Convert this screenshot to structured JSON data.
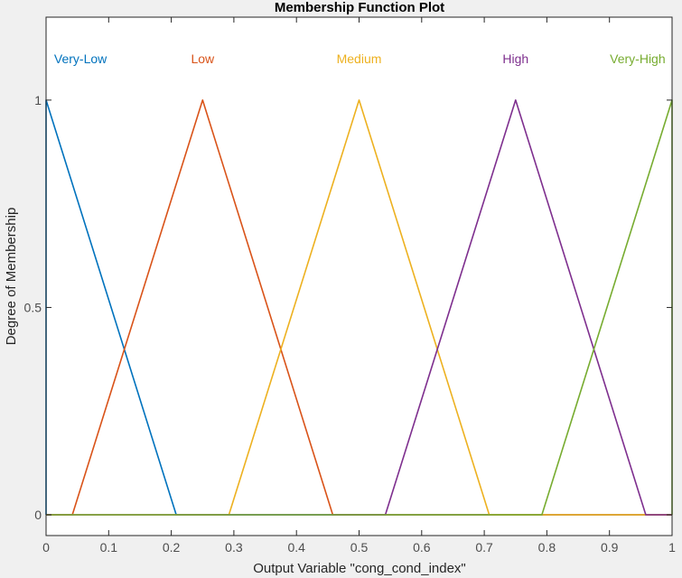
{
  "chart_data": {
    "type": "line",
    "title": "Membership Function Plot",
    "xlabel": "Output Variable \"cong_cond_index\"",
    "ylabel": "Degree of Membership",
    "xlim": [
      0,
      1
    ],
    "ylim": [
      -0.05,
      1.2
    ],
    "xticks": [
      0,
      0.1,
      0.2,
      0.3,
      0.4,
      0.5,
      0.6,
      0.7,
      0.8,
      0.9,
      1
    ],
    "xtick_labels": [
      "0",
      "0.1",
      "0.2",
      "0.3",
      "0.4",
      "0.5",
      "0.6",
      "0.7",
      "0.8",
      "0.9",
      "1"
    ],
    "yticks": [
      0,
      0.5,
      1
    ],
    "ytick_labels": [
      "0",
      "0.5",
      "1"
    ],
    "grid": false,
    "series": [
      {
        "name": "Very-Low",
        "color": "#0072bd",
        "x": [
          0,
          0,
          0.208,
          1
        ],
        "y": [
          0,
          1,
          0,
          0
        ]
      },
      {
        "name": "Low",
        "color": "#d95319",
        "x": [
          0,
          0.042,
          0.25,
          0.458,
          1
        ],
        "y": [
          0,
          0,
          1,
          0,
          0
        ]
      },
      {
        "name": "Medium",
        "color": "#edb120",
        "x": [
          0,
          0.292,
          0.5,
          0.708,
          1
        ],
        "y": [
          0,
          0,
          1,
          0,
          0
        ]
      },
      {
        "name": "High",
        "color": "#7e2f8e",
        "x": [
          0,
          0.542,
          0.75,
          0.958,
          1
        ],
        "y": [
          0,
          0,
          1,
          0,
          0
        ]
      },
      {
        "name": "Very-High",
        "color": "#77ac30",
        "x": [
          0,
          0.792,
          1,
          1
        ],
        "y": [
          0,
          0,
          1,
          0
        ]
      }
    ],
    "labels": [
      {
        "text": "Very-Low",
        "x": 0.055,
        "color": "#0072bd"
      },
      {
        "text": "Low",
        "x": 0.25,
        "color": "#d95319"
      },
      {
        "text": "Medium",
        "x": 0.5,
        "color": "#edb120"
      },
      {
        "text": "High",
        "x": 0.75,
        "color": "#7e2f8e"
      },
      {
        "text": "Very-High",
        "x": 0.945,
        "color": "#77ac30"
      }
    ],
    "label_y": 1.1
  }
}
